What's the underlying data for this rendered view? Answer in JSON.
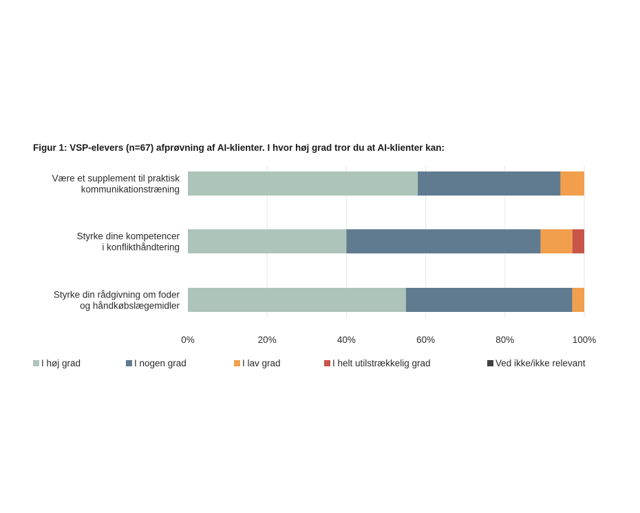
{
  "chart_data": {
    "type": "bar",
    "orientation": "horizontal",
    "stacked": true,
    "title": "Figur 1: VSP-elevers (n=67) afprøvning af AI-klienter. I hvor høj grad tror du at AI-klienter kan:",
    "categories": [
      [
        "Være et supplement til praktisk",
        "kommunikationstræning"
      ],
      [
        "Styrke dine kompetencer",
        "i konflikthåndtering"
      ],
      [
        "Styrke din rådgivning om foder",
        "og håndkøbslægemidler"
      ]
    ],
    "series": [
      {
        "name": "I høj grad",
        "color": "#adc4ba",
        "values": [
          58,
          40,
          55
        ]
      },
      {
        "name": "I nogen grad",
        "color": "#607b8f",
        "values": [
          36,
          49,
          42
        ]
      },
      {
        "name": "I lav grad",
        "color": "#f19f4d",
        "values": [
          6,
          8,
          3
        ]
      },
      {
        "name": "I helt utilstrækkelig grad",
        "color": "#c8554a",
        "values": [
          0,
          3,
          0
        ]
      },
      {
        "name": "Ved ikke/ikke relevant",
        "color": "#404042",
        "values": [
          0,
          0,
          0
        ]
      }
    ],
    "xlim": [
      0,
      100
    ],
    "x_ticks": [
      "0%",
      "20%",
      "40%",
      "60%",
      "80%",
      "100%"
    ],
    "grid": true,
    "legend_position": "bottom"
  }
}
